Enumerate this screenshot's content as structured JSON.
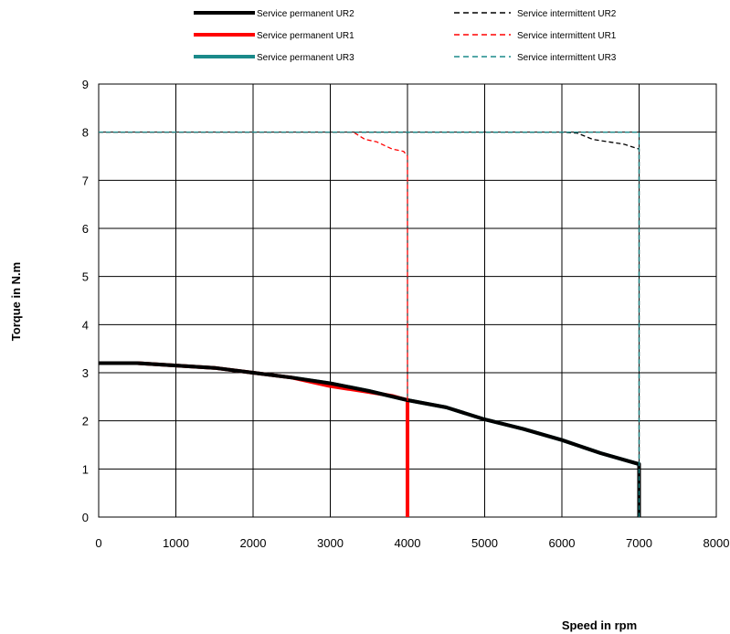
{
  "chart_data": {
    "type": "line",
    "title": "",
    "xlabel": "Speed in rpm",
    "ylabel": "Torque in N.m",
    "xlim": [
      0,
      8000
    ],
    "ylim": [
      0,
      9
    ],
    "xticks": [
      0,
      1000,
      2000,
      3000,
      4000,
      5000,
      6000,
      7000,
      8000
    ],
    "yticks": [
      0,
      1,
      2,
      3,
      4,
      5,
      6,
      7,
      8,
      9
    ],
    "grid": true,
    "legend_position": "top",
    "series": [
      {
        "name": "Service permanent UR2",
        "color": "#000000",
        "style": "solid",
        "x": [
          0,
          500,
          1000,
          1500,
          2000,
          2500,
          3000,
          3500,
          4000,
          4500,
          5000,
          5500,
          6000,
          6500,
          7000,
          7000,
          7000
        ],
        "y": [
          3.2,
          3.2,
          3.15,
          3.1,
          3.0,
          2.9,
          2.78,
          2.62,
          2.43,
          2.28,
          2.03,
          1.83,
          1.6,
          1.33,
          1.1,
          1.1,
          0
        ]
      },
      {
        "name": "Service intermittent UR2",
        "color": "#000000",
        "style": "dashed",
        "x": [
          0,
          6000,
          6200,
          6400,
          6800,
          7000,
          7000
        ],
        "y": [
          8.0,
          8.0,
          7.98,
          7.85,
          7.75,
          7.65,
          0
        ]
      },
      {
        "name": "Service permanent UR1",
        "color": "#ff0000",
        "style": "solid",
        "x": [
          0,
          500,
          1000,
          1500,
          2000,
          2500,
          3000,
          3500,
          3800,
          4000,
          4000,
          4000
        ],
        "y": [
          3.2,
          3.2,
          3.15,
          3.1,
          3.0,
          2.9,
          2.72,
          2.6,
          2.52,
          2.43,
          2.43,
          0
        ]
      },
      {
        "name": "Service intermittent UR1",
        "color": "#ff0000",
        "style": "dashed",
        "x": [
          0,
          3300,
          3450,
          3600,
          3800,
          3950,
          4000,
          4000
        ],
        "y": [
          8.0,
          8.0,
          7.85,
          7.8,
          7.65,
          7.6,
          7.5,
          0
        ]
      },
      {
        "name": "Service permanent UR3",
        "color": "#1a8a8a",
        "style": "solid",
        "x": [
          0,
          500,
          1000,
          1500,
          2000,
          2500,
          3000,
          3500,
          4000,
          4500,
          5000,
          5500,
          6000,
          6500,
          7000,
          7000
        ],
        "y": [
          3.2,
          3.2,
          3.15,
          3.1,
          3.0,
          2.9,
          2.78,
          2.62,
          2.43,
          2.28,
          2.03,
          1.83,
          1.6,
          1.33,
          1.1,
          0
        ]
      },
      {
        "name": "Service intermittent UR3",
        "color": "#1a8a8a",
        "style": "dashed",
        "x": [
          0,
          7000,
          7000
        ],
        "y": [
          8.0,
          8.0,
          0
        ]
      }
    ]
  }
}
